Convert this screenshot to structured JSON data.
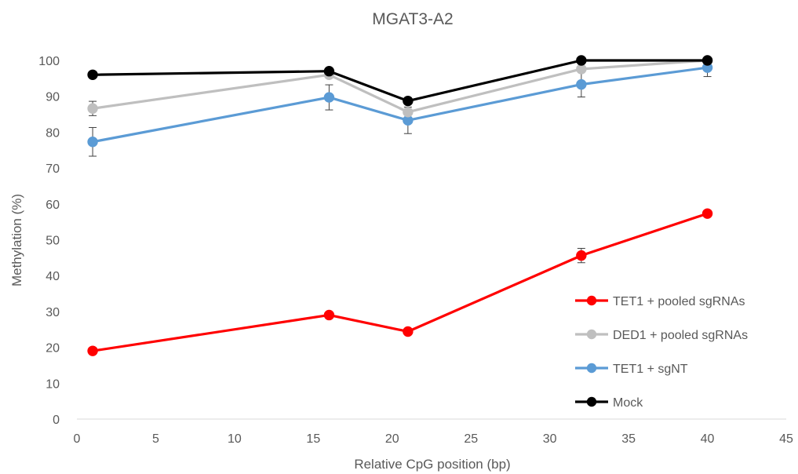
{
  "chart_data": {
    "type": "line",
    "title": "MGAT3-A2",
    "xlabel": "Relative CpG position (bp)",
    "ylabel": "Methylation (%)",
    "xlim": [
      0,
      45
    ],
    "ylim": [
      0,
      100
    ],
    "xticks": [
      0,
      5,
      10,
      15,
      20,
      25,
      30,
      35,
      40,
      45
    ],
    "yticks": [
      0,
      10,
      20,
      30,
      40,
      50,
      60,
      70,
      80,
      90,
      100
    ],
    "x": [
      1,
      16,
      21,
      32,
      40
    ],
    "legend_position": "right",
    "grid": false,
    "series": [
      {
        "name": "TET1 + pooled sgRNAs",
        "color": "#ff0000",
        "values": [
          19,
          29,
          24.4,
          45.6,
          57.3
        ],
        "errors": [
          0,
          0,
          0,
          2,
          0
        ]
      },
      {
        "name": "DED1 + pooled sgRNAs",
        "color": "#bfbfbf",
        "values": [
          86.6,
          96,
          85.6,
          97.6,
          100
        ],
        "errors": [
          2,
          0,
          0,
          0,
          0
        ]
      },
      {
        "name": "TET1 + sgNT",
        "color": "#5b9bd5",
        "values": [
          77.3,
          89.7,
          83.3,
          93.3,
          98
        ],
        "errors": [
          4,
          3.5,
          3.7,
          3.5,
          2.5
        ]
      },
      {
        "name": "Mock",
        "color": "#000000",
        "values": [
          96,
          97,
          88.7,
          100,
          100
        ],
        "errors": [
          0,
          0,
          0,
          0,
          0
        ]
      }
    ]
  }
}
